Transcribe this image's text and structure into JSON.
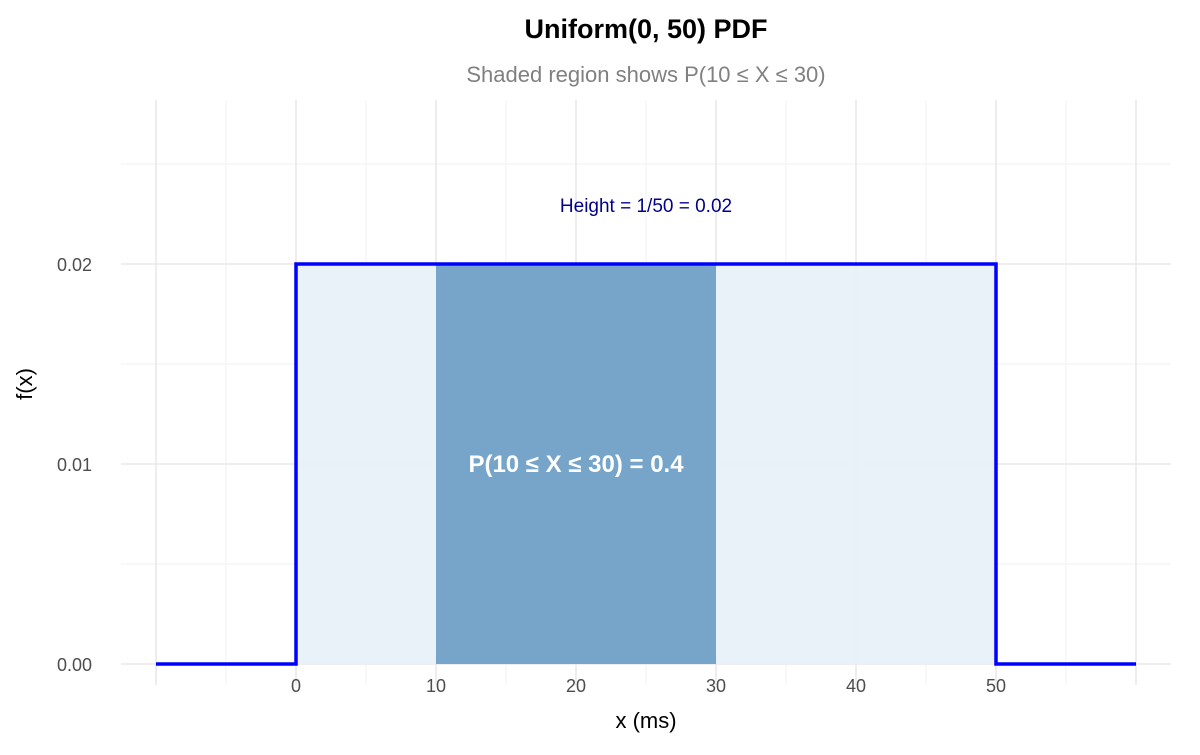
{
  "chart_data": {
    "type": "area",
    "title": "Uniform(0, 50) PDF",
    "subtitle": "Shaded region shows P(10 ≤ X ≤ 30)",
    "xlabel": "x (ms)",
    "ylabel": "f(x)",
    "xlim": [
      -10,
      60
    ],
    "ylim": [
      0,
      0.0282
    ],
    "x_ticks": [
      0,
      10,
      20,
      30,
      40,
      50
    ],
    "x_tick_labels": [
      "0",
      "10",
      "20",
      "30",
      "40",
      "50"
    ],
    "y_ticks": [
      0,
      0.01,
      0.02
    ],
    "y_tick_labels": [
      "0.00",
      "0.01",
      "0.02"
    ],
    "grid": true,
    "pdf_line": {
      "x": [
        -10,
        0,
        0,
        50,
        50,
        60
      ],
      "y": [
        0,
        0,
        0.02,
        0.02,
        0,
        0
      ],
      "color": "#0000ff"
    },
    "support_fill": {
      "x": [
        0,
        50
      ],
      "height": 0.02,
      "color": "#e7f1f8"
    },
    "shaded_region": {
      "x": [
        10,
        30
      ],
      "height": 0.02,
      "color": "#76a5c9",
      "probability": 0.4
    },
    "annotations": [
      {
        "text": "Height = 1/50 = 0.02",
        "x": 25,
        "y": 0.023,
        "color": "#00008b"
      },
      {
        "text": "P(10 ≤ X ≤ 30) = 0.4",
        "x": 20,
        "y": 0.01,
        "color": "#ffffff"
      }
    ]
  }
}
